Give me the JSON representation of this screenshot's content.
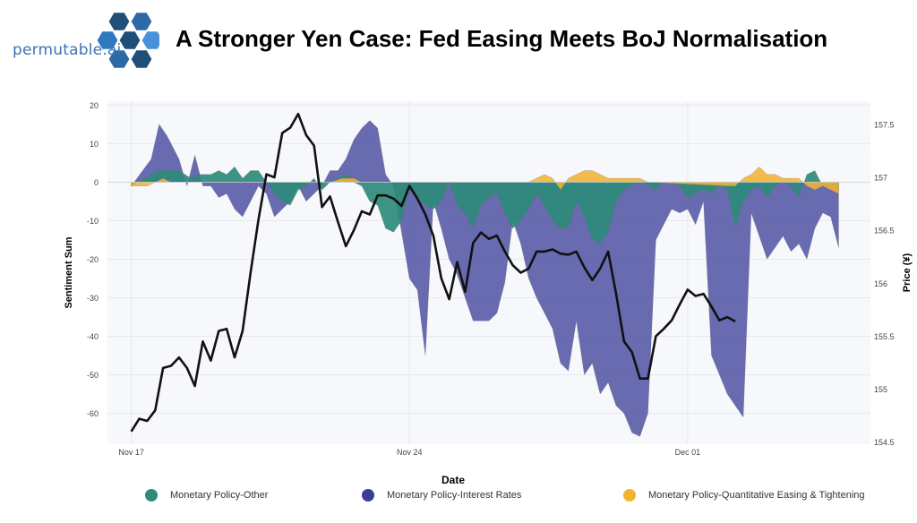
{
  "brand": {
    "name": "permutable.ai"
  },
  "title": "A Stronger Yen Case: Fed Easing Meets BoJ Normalisation",
  "chart_data": {
    "type": "area",
    "xlabel": "Date",
    "ylabel_left": "Sentiment Sum",
    "ylabel_right": "Price (¥)",
    "x_ticks": [
      "Nov 17",
      "Nov 24",
      "Dec 01"
    ],
    "x_tick_positions": [
      0,
      7,
      14
    ],
    "x_range": [
      -0.6,
      18.6
    ],
    "ylim_left": [
      -68,
      21
    ],
    "yticks_left": [
      20,
      10,
      0,
      -10,
      -20,
      -30,
      -40,
      -50,
      -60
    ],
    "ylim_right": [
      154.48,
      157.72
    ],
    "yticks_right": [
      "157.5",
      "157",
      "156.5",
      "156",
      "155.5",
      "155",
      "154.5"
    ],
    "grid": true,
    "legend_position": "bottom",
    "series": [
      {
        "name": "Monetary Policy-Other",
        "color": "#2e8b79",
        "points": [
          [
            0,
            -1
          ],
          [
            0.5,
            2
          ],
          [
            0.7,
            3
          ],
          [
            1.2,
            3
          ],
          [
            1.5,
            1
          ],
          [
            1.7,
            2
          ],
          [
            2,
            2
          ],
          [
            2.2,
            3
          ],
          [
            2.4,
            2
          ],
          [
            2.6,
            4
          ],
          [
            2.8,
            1
          ],
          [
            3,
            3
          ],
          [
            3.2,
            3
          ],
          [
            3.4,
            0
          ],
          [
            3.6,
            -3
          ],
          [
            3.8,
            -5
          ],
          [
            4,
            -6
          ],
          [
            4.2,
            -2
          ],
          [
            4.4,
            -1
          ],
          [
            4.6,
            1
          ],
          [
            4.8,
            -2
          ],
          [
            5,
            0
          ],
          [
            5.2,
            1
          ],
          [
            5.4,
            2
          ],
          [
            5.6,
            0
          ],
          [
            5.8,
            -1
          ],
          [
            6,
            -5
          ],
          [
            6.2,
            -6
          ],
          [
            6.4,
            -12
          ],
          [
            6.6,
            -13
          ],
          [
            6.8,
            -10
          ],
          [
            7,
            -2
          ],
          [
            7.2,
            -4
          ],
          [
            7.4,
            -6
          ],
          [
            7.6,
            -7
          ],
          [
            7.8,
            -5
          ],
          [
            8,
            0
          ],
          [
            8.2,
            -6
          ],
          [
            8.4,
            -8
          ],
          [
            8.6,
            -12
          ],
          [
            8.8,
            -6
          ],
          [
            9,
            -4
          ],
          [
            9.2,
            -3
          ],
          [
            9.4,
            -8
          ],
          [
            9.6,
            -12
          ],
          [
            9.8,
            -10
          ],
          [
            10,
            -7
          ],
          [
            10.2,
            -3
          ],
          [
            10.4,
            -6
          ],
          [
            10.6,
            -10
          ],
          [
            10.8,
            -12
          ],
          [
            11,
            -12
          ],
          [
            11.2,
            -5
          ],
          [
            11.4,
            -9
          ],
          [
            11.6,
            -15
          ],
          [
            11.8,
            -16
          ],
          [
            12,
            -13
          ],
          [
            12.2,
            -5
          ],
          [
            12.4,
            -2
          ],
          [
            12.6,
            -1
          ],
          [
            12.8,
            0
          ],
          [
            13,
            -1
          ],
          [
            13.2,
            -2
          ],
          [
            13.4,
            0
          ],
          [
            13.6,
            0
          ],
          [
            13.8,
            -1
          ],
          [
            14,
            -4
          ],
          [
            14.2,
            -3
          ],
          [
            14.4,
            -2
          ],
          [
            14.6,
            -3
          ],
          [
            14.8,
            -1
          ],
          [
            15,
            -2
          ],
          [
            15.2,
            -12
          ],
          [
            15.4,
            -5
          ],
          [
            15.6,
            -2
          ],
          [
            15.8,
            -1
          ],
          [
            16,
            -4
          ],
          [
            16.2,
            -1
          ],
          [
            16.4,
            0
          ],
          [
            16.6,
            -1
          ],
          [
            16.8,
            -4
          ],
          [
            17,
            2
          ],
          [
            17.2,
            3
          ],
          [
            17.4,
            -1
          ],
          [
            17.6,
            -1
          ],
          [
            17.8,
            -2
          ]
        ]
      },
      {
        "name": "Monetary Policy-Interest Rates",
        "color": "#5b5ea8",
        "points": [
          [
            0,
            -1
          ],
          [
            0.5,
            6
          ],
          [
            0.7,
            15
          ],
          [
            0.9,
            12
          ],
          [
            1.2,
            6
          ],
          [
            1.4,
            -1
          ],
          [
            1.6,
            7
          ],
          [
            1.8,
            -1
          ],
          [
            2,
            -1
          ],
          [
            2.2,
            -4
          ],
          [
            2.4,
            -3
          ],
          [
            2.6,
            -7
          ],
          [
            2.8,
            -9
          ],
          [
            3,
            -5
          ],
          [
            3.2,
            -1
          ],
          [
            3.4,
            -3
          ],
          [
            3.6,
            -9
          ],
          [
            3.8,
            -7
          ],
          [
            4,
            -5
          ],
          [
            4.2,
            -1
          ],
          [
            4.4,
            -5
          ],
          [
            4.6,
            -3
          ],
          [
            4.8,
            -1
          ],
          [
            5,
            3
          ],
          [
            5.2,
            3
          ],
          [
            5.4,
            6
          ],
          [
            5.6,
            11
          ],
          [
            5.8,
            14
          ],
          [
            6,
            16
          ],
          [
            6.2,
            14
          ],
          [
            6.4,
            2
          ],
          [
            6.6,
            -1
          ],
          [
            6.8,
            -13
          ],
          [
            7,
            -25
          ],
          [
            7.2,
            -28
          ],
          [
            7.4,
            -45
          ],
          [
            7.6,
            -5
          ],
          [
            7.8,
            -12
          ],
          [
            8,
            -20
          ],
          [
            8.2,
            -24
          ],
          [
            8.4,
            -30
          ],
          [
            8.6,
            -36
          ],
          [
            8.8,
            -36
          ],
          [
            9,
            -36
          ],
          [
            9.2,
            -34
          ],
          [
            9.4,
            -26
          ],
          [
            9.6,
            -10
          ],
          [
            9.8,
            -16
          ],
          [
            10,
            -25
          ],
          [
            10.2,
            -30
          ],
          [
            10.4,
            -34
          ],
          [
            10.6,
            -38
          ],
          [
            10.8,
            -47
          ],
          [
            11,
            -49
          ],
          [
            11.2,
            -36
          ],
          [
            11.4,
            -50
          ],
          [
            11.6,
            -47
          ],
          [
            11.8,
            -55
          ],
          [
            12,
            -52
          ],
          [
            12.2,
            -58
          ],
          [
            12.4,
            -60
          ],
          [
            12.6,
            -65
          ],
          [
            12.8,
            -66
          ],
          [
            13,
            -60
          ],
          [
            13.2,
            -15
          ],
          [
            13.4,
            -11
          ],
          [
            13.6,
            -7
          ],
          [
            13.8,
            -8
          ],
          [
            14,
            -7
          ],
          [
            14.2,
            -11
          ],
          [
            14.4,
            -5
          ],
          [
            14.6,
            -45
          ],
          [
            14.8,
            -50
          ],
          [
            15,
            -55
          ],
          [
            15.2,
            -58
          ],
          [
            15.4,
            -61
          ],
          [
            15.6,
            -8
          ],
          [
            15.8,
            -14
          ],
          [
            16,
            -20
          ],
          [
            16.2,
            -17
          ],
          [
            16.4,
            -14
          ],
          [
            16.6,
            -18
          ],
          [
            16.8,
            -16
          ],
          [
            17,
            -20
          ],
          [
            17.2,
            -12
          ],
          [
            17.4,
            -8
          ],
          [
            17.6,
            -9
          ],
          [
            17.8,
            -17
          ]
        ]
      },
      {
        "name": "Monetary Policy-Quantitative Easing & Tightening",
        "color": "#f2b233",
        "points": [
          [
            0,
            -1
          ],
          [
            0.4,
            -1
          ],
          [
            0.6,
            0
          ],
          [
            0.8,
            1
          ],
          [
            1,
            0
          ],
          [
            1.2,
            0
          ],
          [
            5,
            0
          ],
          [
            5.3,
            1
          ],
          [
            5.6,
            1
          ],
          [
            5.8,
            0
          ],
          [
            6,
            0
          ],
          [
            8,
            0
          ],
          [
            10,
            0
          ],
          [
            10.4,
            2
          ],
          [
            10.6,
            1
          ],
          [
            10.8,
            -2
          ],
          [
            11,
            1
          ],
          [
            11.2,
            2
          ],
          [
            11.4,
            3
          ],
          [
            11.6,
            3
          ],
          [
            11.8,
            2
          ],
          [
            12,
            1
          ],
          [
            12.3,
            1
          ],
          [
            12.6,
            1
          ],
          [
            12.8,
            1
          ],
          [
            13,
            0
          ],
          [
            15,
            -1
          ],
          [
            15.2,
            -1
          ],
          [
            15.4,
            1
          ],
          [
            15.6,
            2
          ],
          [
            15.8,
            4
          ],
          [
            16,
            2
          ],
          [
            16.2,
            2
          ],
          [
            16.4,
            1
          ],
          [
            16.6,
            1
          ],
          [
            16.8,
            1
          ],
          [
            17,
            -1
          ],
          [
            17.2,
            -2
          ],
          [
            17.4,
            -1
          ],
          [
            17.6,
            -2
          ],
          [
            17.8,
            -3
          ]
        ]
      },
      {
        "name": "Price",
        "color": "#111111",
        "axis": "right",
        "points": [
          [
            0,
            154.6
          ],
          [
            0.2,
            154.72
          ],
          [
            0.4,
            154.7
          ],
          [
            0.6,
            154.8
          ],
          [
            0.8,
            155.2
          ],
          [
            1,
            155.22
          ],
          [
            1.2,
            155.3
          ],
          [
            1.4,
            155.2
          ],
          [
            1.6,
            155.03
          ],
          [
            1.8,
            155.45
          ],
          [
            2,
            155.27
          ],
          [
            2.2,
            155.55
          ],
          [
            2.4,
            155.57
          ],
          [
            2.6,
            155.3
          ],
          [
            2.8,
            155.55
          ],
          [
            3,
            156.1
          ],
          [
            3.2,
            156.6
          ],
          [
            3.4,
            157.03
          ],
          [
            3.6,
            157.0
          ],
          [
            3.8,
            157.42
          ],
          [
            4,
            157.47
          ],
          [
            4.2,
            157.6
          ],
          [
            4.4,
            157.4
          ],
          [
            4.6,
            157.3
          ],
          [
            4.8,
            156.72
          ],
          [
            5,
            156.82
          ],
          [
            5.2,
            156.58
          ],
          [
            5.4,
            156.35
          ],
          [
            5.6,
            156.5
          ],
          [
            5.8,
            156.68
          ],
          [
            6,
            156.65
          ],
          [
            6.2,
            156.83
          ],
          [
            6.4,
            156.83
          ],
          [
            6.6,
            156.8
          ],
          [
            6.8,
            156.73
          ],
          [
            7,
            156.92
          ],
          [
            7.2,
            156.8
          ],
          [
            7.4,
            156.65
          ],
          [
            7.6,
            156.45
          ],
          [
            7.8,
            156.05
          ],
          [
            8,
            155.85
          ],
          [
            8.2,
            156.2
          ],
          [
            8.4,
            155.92
          ],
          [
            8.6,
            156.38
          ],
          [
            8.8,
            156.48
          ],
          [
            9,
            156.42
          ],
          [
            9.2,
            156.45
          ],
          [
            9.4,
            156.3
          ],
          [
            9.6,
            156.17
          ],
          [
            9.8,
            156.1
          ],
          [
            10,
            156.14
          ],
          [
            10.2,
            156.3
          ],
          [
            10.4,
            156.3
          ],
          [
            10.6,
            156.32
          ],
          [
            10.8,
            156.28
          ],
          [
            11,
            156.27
          ],
          [
            11.2,
            156.3
          ],
          [
            11.4,
            156.15
          ],
          [
            11.6,
            156.03
          ],
          [
            11.8,
            156.14
          ],
          [
            12,
            156.3
          ],
          [
            12.2,
            155.9
          ],
          [
            12.4,
            155.45
          ],
          [
            12.6,
            155.35
          ],
          [
            12.8,
            155.1
          ],
          [
            13,
            155.1
          ],
          [
            13.2,
            155.5
          ],
          [
            13.4,
            155.57
          ],
          [
            13.6,
            155.65
          ],
          [
            13.8,
            155.8
          ],
          [
            14,
            155.94
          ],
          [
            14.2,
            155.88
          ],
          [
            14.4,
            155.9
          ],
          [
            14.6,
            155.78
          ],
          [
            14.8,
            155.65
          ],
          [
            15,
            155.68
          ],
          [
            15.2,
            155.64
          ]
        ]
      }
    ]
  }
}
